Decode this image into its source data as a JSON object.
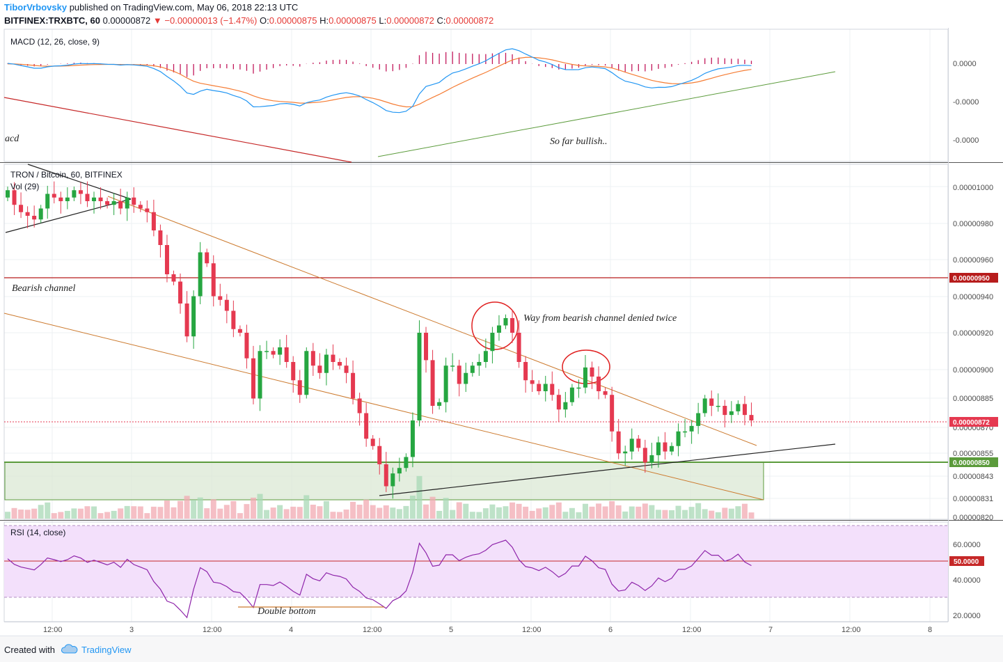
{
  "header": {
    "author": "TiborVrbovsky",
    "published": "published on TradingView.com, May 06, 2018 22:13 UTC",
    "symbol": "BITFINEX:TRXBTC, 60",
    "last": "0.00000872",
    "change": "▼ −0.00000013 (−1.47%)",
    "o_label": "O:",
    "o": "0.00000875",
    "h_label": "H:",
    "h": "0.00000875",
    "l_label": "L:",
    "l": "0.00000872",
    "c_label": "C:",
    "c": "0.00000872"
  },
  "footer": {
    "created": "Created with",
    "brand": "TradingView"
  },
  "colors": {
    "up": "#26a641",
    "down": "#e53950",
    "macd": "#2196f3",
    "signal": "#f57c33",
    "hist": "#c2185b",
    "rsi": "#8e24aa",
    "trendline": "#cc7a2e"
  },
  "chart_data": [
    {
      "type": "line",
      "title": "MACD (12, 26, close, 9)",
      "series": [
        {
          "name": "MACD"
        },
        {
          "name": "Signal"
        },
        {
          "name": "Histogram"
        }
      ],
      "y_ticks": [
        "0.0000",
        "-0.0000",
        "-0.0000"
      ],
      "annotations": [
        "acd",
        "So far bullish.."
      ]
    },
    {
      "type": "candlestick",
      "title": "TRON / Bitcoin, 60, BITFINEX",
      "volume_label": "Vol (29)",
      "ylim": [
        8.2e-06,
        1.01e-05
      ],
      "y_ticks": [
        "0.00001000",
        "0.00000980",
        "0.00000960",
        "0.00000940",
        "0.00000920",
        "0.00000900",
        "0.00000885",
        "0.00000870",
        "0.00000855",
        "0.00000843",
        "0.00000831",
        "0.00000820"
      ],
      "price_tags": [
        {
          "value": "0.00000950",
          "color": "#b71c1c"
        },
        {
          "value": "0.00000872",
          "color": "#e53950"
        },
        {
          "value": "0.00000850",
          "color": "#5b9b3b"
        }
      ],
      "x_ticks": [
        "12:00",
        "3",
        "12:00",
        "4",
        "12:00",
        "5",
        "12:00",
        "6",
        "12:00",
        "7",
        "12:00",
        "8"
      ],
      "close": [
        9.98,
        9.9,
        9.86,
        9.84,
        9.82,
        9.88,
        9.96,
        9.94,
        9.92,
        9.94,
        9.98,
        9.96,
        9.92,
        9.94,
        9.92,
        9.9,
        9.92,
        9.88,
        9.94,
        9.9,
        9.88,
        9.86,
        9.76,
        9.68,
        9.52,
        9.48,
        9.36,
        9.18,
        9.4,
        9.64,
        9.58,
        9.4,
        9.38,
        9.32,
        9.22,
        9.2,
        9.06,
        8.84,
        9.1,
        9.1,
        9.08,
        9.12,
        9.04,
        8.94,
        8.86,
        9.1,
        9.02,
        8.98,
        9.08,
        9.04,
        9.02,
        8.98,
        8.84,
        8.76,
        8.62,
        8.58,
        8.48,
        8.36,
        8.43,
        8.46,
        8.52,
        8.72,
        9.2,
        9.05,
        8.8,
        8.82,
        9.02,
        9.02,
        8.92,
        8.98,
        9.02,
        9.04,
        9.1,
        9.2,
        9.24,
        9.28,
        9.2,
        9.04,
        8.94,
        8.92,
        8.88,
        8.92,
        8.86,
        8.78,
        8.82,
        8.9,
        8.9,
        9.01,
        8.96,
        8.88,
        8.86,
        8.66,
        8.54,
        8.55,
        8.62,
        8.57,
        8.49,
        8.53,
        8.6,
        8.55,
        8.58,
        8.66,
        8.66,
        8.69,
        8.76,
        8.84,
        8.8,
        8.8,
        8.75,
        8.77,
        8.81,
        8.75,
        8.72
      ],
      "annotations": [
        "Bearish channel",
        "Way from bearish channel denied twice"
      ]
    },
    {
      "type": "line",
      "title": "RSI (14, close)",
      "ylim": [
        15,
        75
      ],
      "y_ticks": [
        "60.0000",
        "40.0000",
        "20.0000"
      ],
      "levels": [
        50,
        70,
        30
      ],
      "last_value": "50.0000",
      "annotations": [
        "Double bottom"
      ]
    }
  ]
}
